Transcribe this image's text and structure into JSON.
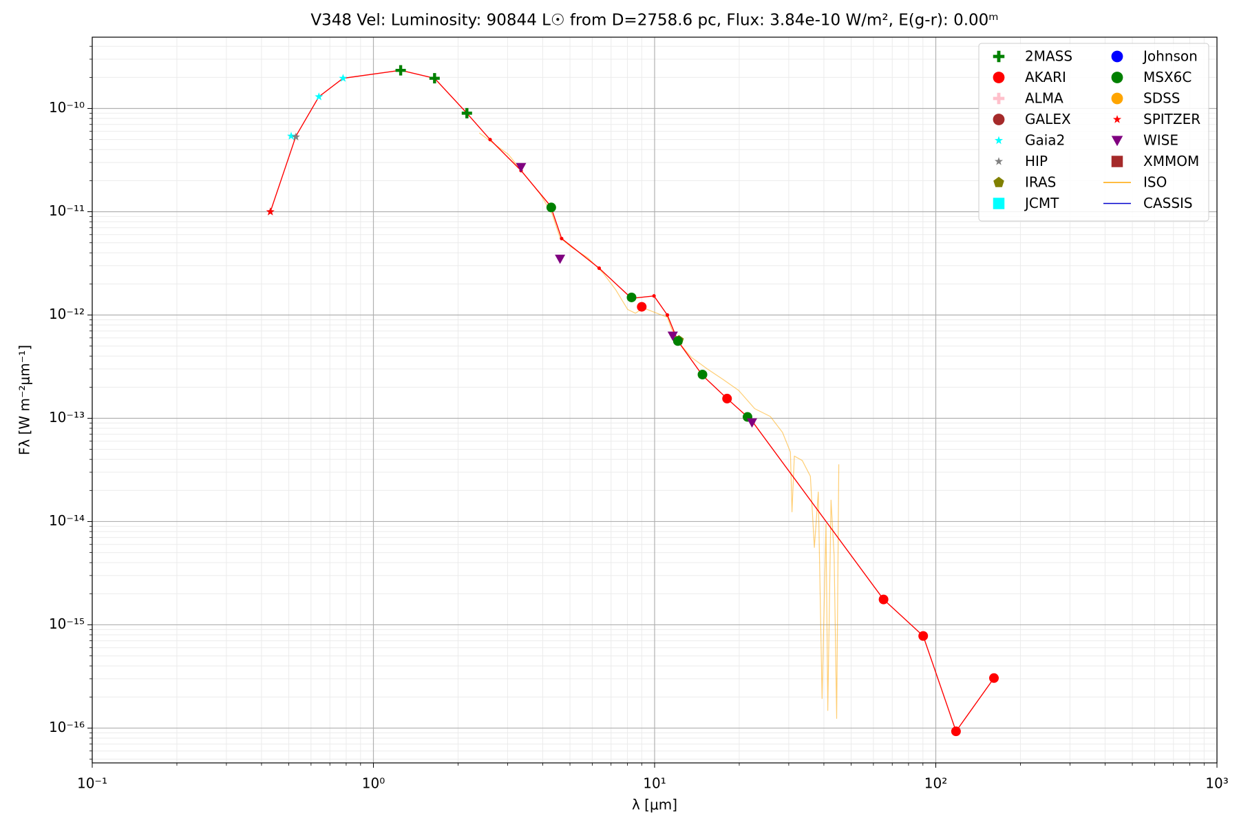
{
  "chart_data": {
    "type": "scatter",
    "title": "V348 Vel:  Luminosity: 90844 L☉ from D=2758.6 pc, Flux: 3.84e-10 W/m², E(g-r): 0.00ᵐ",
    "x_label": "λ [μm]",
    "y_label": "Fλ [W m⁻²μm⁻¹]",
    "x_log": true,
    "y_log": true,
    "grid": true,
    "minor_grid": true,
    "legend_position": "upper-right",
    "legend_columns": 2,
    "xlim": [
      0.1,
      1000
    ],
    "ylim": [
      4.6e-17,
      4.9e-10
    ],
    "xticks": [
      {
        "value": 0.1,
        "label": "10⁻¹"
      },
      {
        "value": 1,
        "label": "10⁰"
      },
      {
        "value": 10,
        "label": "10¹"
      },
      {
        "value": 100,
        "label": "10²"
      },
      {
        "value": 1000,
        "label": "10³"
      }
    ],
    "yticks": [
      {
        "value": 1e-16,
        "label": "10⁻¹⁶"
      },
      {
        "value": 1e-15,
        "label": "10⁻¹⁵"
      },
      {
        "value": 1e-14,
        "label": "10⁻¹⁴"
      },
      {
        "value": 1e-13,
        "label": "10⁻¹³"
      },
      {
        "value": 1e-12,
        "label": "10⁻¹²"
      },
      {
        "value": 1e-11,
        "label": "10⁻¹¹"
      },
      {
        "value": 1e-10,
        "label": "10⁻¹⁰"
      }
    ],
    "series": [
      {
        "name": "ISO",
        "color": "#ffa500",
        "marker": "line",
        "x": [
          2.38,
          2.65,
          3.02,
          3.44,
          3.92,
          4.32,
          4.61,
          5.08,
          5.79,
          6.59,
          7.27,
          8.02,
          8.55,
          9.12,
          11.1,
          11.5,
          12.2,
          13.5,
          15.4,
          17.5,
          19.9,
          22.7,
          25.8,
          28.5,
          30.4,
          30.8,
          31.4,
          33.5,
          35.8,
          37.0,
          38.2,
          39.4,
          40.7,
          41.3,
          42.4,
          43.5,
          44.4,
          45.2
        ],
        "values": [
          5.8e-11,
          4.67e-11,
          3.58e-11,
          2.3e-11,
          1.48e-11,
          9.5e-12,
          5.6e-12,
          4.5e-12,
          3.58e-12,
          2.51e-12,
          1.76e-12,
          1.13e-12,
          1.04e-12,
          1.17e-12,
          9.5e-13,
          7.3e-13,
          5.4e-13,
          3.9e-13,
          3e-13,
          2.38e-13,
          1.86e-13,
          1.24e-13,
          1.04e-13,
          7.3e-14,
          4.7e-14,
          1.24e-14,
          4.3e-14,
          3.9e-14,
          2.75e-14,
          5.6e-15,
          1.93e-14,
          1.93e-16,
          9.5e-15,
          1.48e-16,
          1.61e-14,
          4.7e-15,
          1.24e-16,
          3.58e-14
        ]
      },
      {
        "color": "#ff0000",
        "marker": "dot-line",
        "x": [
          0.43,
          0.53,
          0.64,
          0.78,
          1.25,
          1.65,
          2.15,
          2.6,
          3.35,
          4.27,
          4.67,
          6.35,
          8.28,
          9.95,
          11.1,
          12.1,
          14.8,
          18.1,
          21.4,
          22.4,
          65.2,
          90.2,
          118,
          161
        ],
        "values": [
          1e-11,
          5.4e-11,
          1.3e-10,
          1.96e-10,
          2.34e-10,
          1.96e-10,
          9e-11,
          5e-11,
          2.5e-11,
          1.13e-11,
          5.5e-12,
          2.84e-12,
          1.45e-12,
          1.53e-12,
          1e-12,
          5.6e-13,
          2.6e-13,
          1.55e-13,
          1.03e-13,
          9.1e-14,
          1.76e-15,
          7.8e-16,
          9.3e-17,
          3.05e-16
        ]
      },
      {
        "name": "2MASS",
        "color": "#008000",
        "marker": "plus",
        "x": [
          1.25,
          1.65,
          2.15
        ],
        "values": [
          2.34e-10,
          1.96e-10,
          9e-11
        ]
      },
      {
        "name": "AKARI",
        "color": "#ff0000",
        "marker": "circle",
        "x": [
          9.0,
          18.1,
          65.2,
          90.2,
          118,
          161
        ],
        "values": [
          1.2e-12,
          1.55e-13,
          1.76e-15,
          7.8e-16,
          9.3e-17,
          3.05e-16
        ]
      },
      {
        "name": "ALMA",
        "color": "#ffc0cb",
        "marker": "plus",
        "x": [],
        "values": []
      },
      {
        "name": "GALEX",
        "color": "#a52a2a",
        "marker": "circle",
        "x": [],
        "values": []
      },
      {
        "name": "Gaia2",
        "color": "#00ffff",
        "marker": "star",
        "x": [
          0.51,
          0.64,
          0.78
        ],
        "values": [
          5.4e-11,
          1.3e-10,
          1.96e-10
        ]
      },
      {
        "name": "HIP",
        "color": "#808080",
        "marker": "star",
        "x": [
          0.43,
          0.53
        ],
        "values": [
          1e-11,
          5.3e-11
        ]
      },
      {
        "name": "IRAS",
        "color": "#808000",
        "marker": "pentagon",
        "x": [
          12.2
        ],
        "values": [
          5.7e-13
        ]
      },
      {
        "name": "JCMT",
        "color": "#00ffff",
        "marker": "square",
        "x": [],
        "values": []
      },
      {
        "name": "Johnson",
        "color": "#0000ff",
        "marker": "circle",
        "x": [],
        "values": []
      },
      {
        "name": "MSX6C",
        "color": "#008000",
        "marker": "circle",
        "x": [
          4.29,
          8.28,
          12.1,
          14.8,
          21.4
        ],
        "values": [
          1.1e-11,
          1.48e-12,
          5.6e-13,
          2.65e-13,
          1.03e-13
        ]
      },
      {
        "name": "SDSS",
        "color": "#ffa500",
        "marker": "circle",
        "x": [],
        "values": []
      },
      {
        "name": "SPITZER",
        "color": "#ff0000",
        "marker": "star",
        "x": [
          0.43
        ],
        "values": [
          1e-11
        ]
      },
      {
        "name": "WISE",
        "color": "#800080",
        "marker": "triangle-down",
        "x": [
          3.35,
          4.61,
          11.6,
          22.2
        ],
        "values": [
          2.7e-11,
          3.5e-12,
          6.3e-13,
          9.1e-14
        ]
      },
      {
        "name": "XMMOM",
        "color": "#a52a2a",
        "marker": "square",
        "x": [],
        "values": []
      },
      {
        "name": "CASSIS",
        "color": "#0000cd",
        "marker": "line",
        "x": [],
        "values": []
      }
    ],
    "legend_order": [
      2,
      3,
      4,
      5,
      6,
      7,
      8,
      9,
      10,
      11,
      12,
      13,
      14,
      15,
      0,
      16
    ]
  }
}
